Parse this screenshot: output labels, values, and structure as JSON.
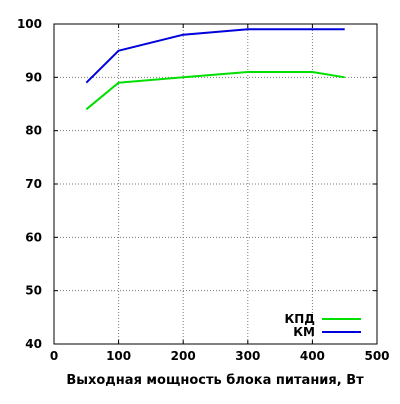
{
  "chart_data": {
    "type": "line",
    "title": "",
    "xlabel": "Выходная мощность блока питания, Вт",
    "ylabel": "",
    "xlim": [
      0,
      500
    ],
    "ylim": [
      40,
      100
    ],
    "xticks": [
      "0",
      "100",
      "200",
      "300",
      "400",
      "500"
    ],
    "yticks": [
      "40",
      "50",
      "60",
      "70",
      "80",
      "90",
      "100"
    ],
    "grid": true,
    "legend_position": "bottom-right",
    "series": [
      {
        "name": "КПД",
        "color": "#00e000",
        "x": [
          50,
          100,
          200,
          300,
          400,
          450
        ],
        "y": [
          84,
          89,
          90,
          91,
          91,
          90
        ]
      },
      {
        "name": "КМ",
        "color": "#0000dd",
        "x": [
          50,
          100,
          200,
          300,
          400,
          450
        ],
        "y": [
          89,
          95,
          98,
          99,
          99,
          99
        ]
      }
    ]
  }
}
